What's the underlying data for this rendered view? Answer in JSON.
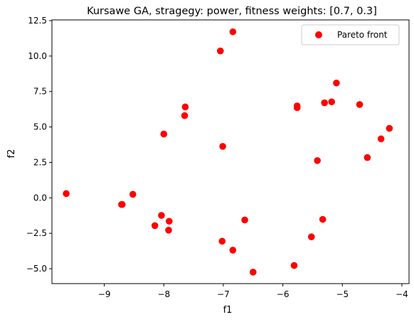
{
  "chart_data": {
    "type": "scatter",
    "title": "Kursawe GA, stragegy: power, fitness weights: [0.7, 0.3]",
    "xlabel": "f1",
    "ylabel": "f2",
    "xlim": [
      -9.88,
      -3.88
    ],
    "ylim": [
      -6.05,
      12.55
    ],
    "x_ticks": [
      -9,
      -8,
      -7,
      -6,
      -5,
      -4
    ],
    "x_tick_labels": [
      "−9",
      "−8",
      "−7",
      "−6",
      "−5",
      "−4"
    ],
    "y_ticks": [
      -5.0,
      -2.5,
      0.0,
      2.5,
      5.0,
      7.5,
      10.0,
      12.5
    ],
    "y_tick_labels": [
      "−5.0",
      "−2.5",
      "0.0",
      "2.5",
      "5.0",
      "7.5",
      "10.0",
      "12.5"
    ],
    "grid": false,
    "legend_position": "top-right",
    "series": [
      {
        "name": "Pareto front",
        "color": "#ff0000",
        "points": [
          {
            "x": -9.64,
            "y": 0.3
          },
          {
            "x": -8.71,
            "y": -0.47
          },
          {
            "x": -8.7,
            "y": -0.47
          },
          {
            "x": -8.52,
            "y": 0.25
          },
          {
            "x": -8.15,
            "y": -1.96
          },
          {
            "x": -8.04,
            "y": -1.24
          },
          {
            "x": -8.0,
            "y": 4.5
          },
          {
            "x": -7.92,
            "y": -2.28
          },
          {
            "x": -7.91,
            "y": -1.65
          },
          {
            "x": -7.64,
            "y": 6.41
          },
          {
            "x": -7.65,
            "y": 5.8
          },
          {
            "x": -7.05,
            "y": 10.36
          },
          {
            "x": -7.01,
            "y": 3.63
          },
          {
            "x": -7.02,
            "y": -3.06
          },
          {
            "x": -6.84,
            "y": 11.71
          },
          {
            "x": -6.84,
            "y": -3.69
          },
          {
            "x": -6.64,
            "y": -1.56
          },
          {
            "x": -6.5,
            "y": -5.24
          },
          {
            "x": -5.81,
            "y": -4.77
          },
          {
            "x": -5.76,
            "y": 6.36
          },
          {
            "x": -5.76,
            "y": 6.48
          },
          {
            "x": -5.52,
            "y": -2.75
          },
          {
            "x": -5.42,
            "y": 2.63
          },
          {
            "x": -5.33,
            "y": -1.52
          },
          {
            "x": -5.3,
            "y": 6.7
          },
          {
            "x": -5.18,
            "y": 6.77
          },
          {
            "x": -5.1,
            "y": 8.1
          },
          {
            "x": -4.71,
            "y": 6.58
          },
          {
            "x": -4.58,
            "y": 2.84
          },
          {
            "x": -4.35,
            "y": 4.16
          },
          {
            "x": -4.21,
            "y": 4.9
          }
        ]
      }
    ]
  }
}
